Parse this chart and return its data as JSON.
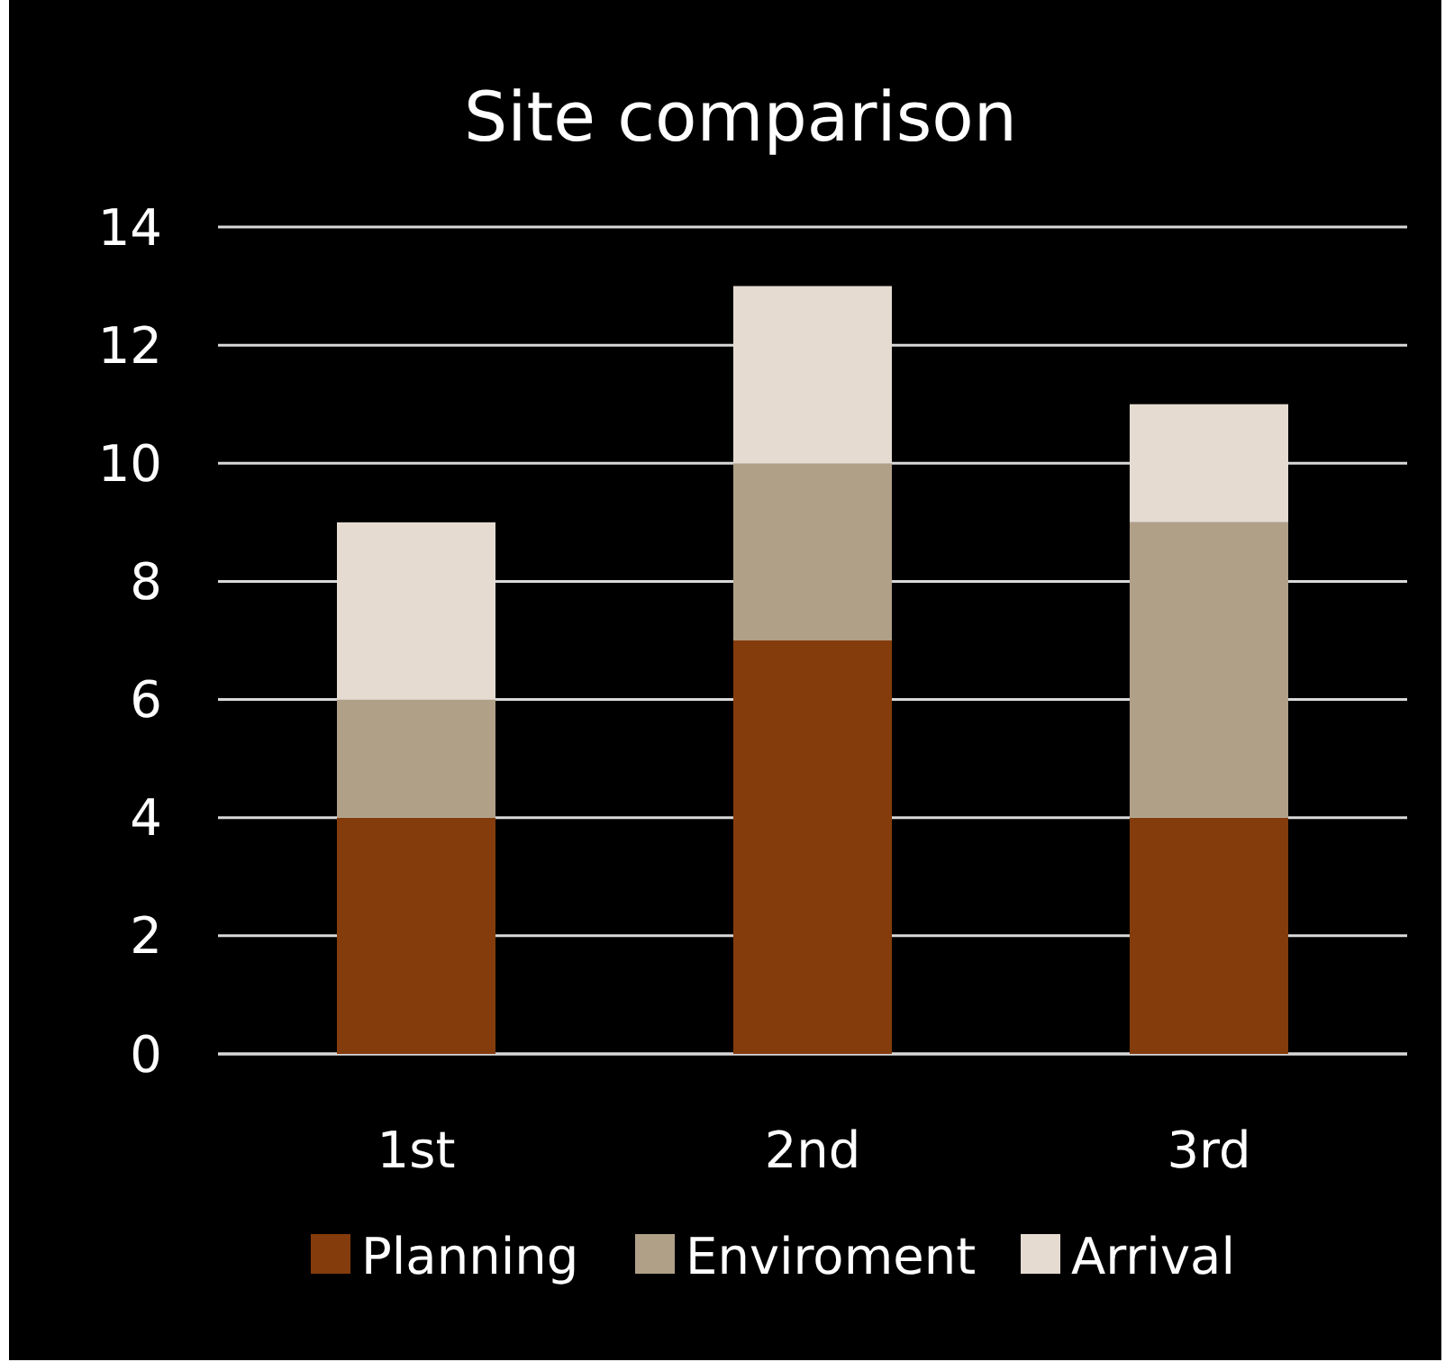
{
  "chart_data": {
    "type": "bar",
    "title": "Site comparison",
    "categories": [
      "1st",
      "2nd",
      "3rd"
    ],
    "stacked": true,
    "series": [
      {
        "name": "Planning",
        "color": "#843c0c",
        "values": [
          4,
          7,
          4
        ]
      },
      {
        "name": "Enviroment",
        "color": "#b0a088",
        "values": [
          2,
          3,
          5
        ]
      },
      {
        "name": "Arrival",
        "color": "#e5dbd1",
        "values": [
          3,
          3,
          2
        ]
      }
    ],
    "ylim": [
      0,
      14
    ],
    "yticks": [
      0,
      2,
      4,
      6,
      8,
      10,
      12,
      14
    ],
    "grid": "y",
    "legend": "bottom"
  }
}
